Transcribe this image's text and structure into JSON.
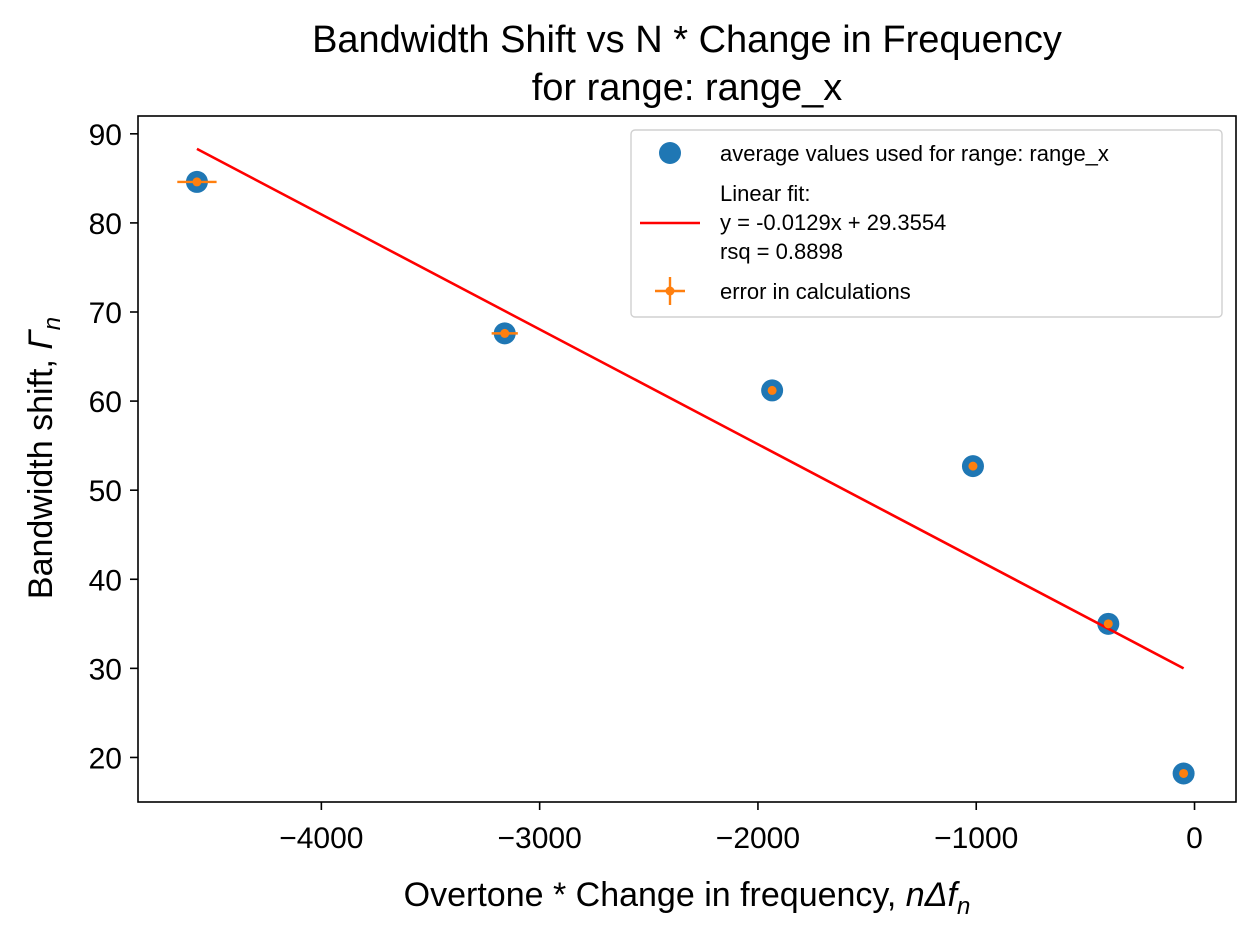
{
  "chart_data": {
    "type": "scatter",
    "title": "Bandwidth Shift vs N * Change in Frequency",
    "subtitle": "for range: range_x",
    "xlabel": "Overtone * Change in frequency, ",
    "xlabel_math": "nΔf",
    "xlabel_sub": "n",
    "ylabel": "Bandwidth shift, ",
    "ylabel_math": "Γ",
    "ylabel_sub": "n",
    "xlim": [
      -4840,
      190
    ],
    "ylim": [
      15,
      92
    ],
    "xticks": [
      -4000,
      -3000,
      -2000,
      -1000,
      0
    ],
    "xtick_labels": [
      "−4000",
      "−3000",
      "−2000",
      "−1000",
      "0"
    ],
    "yticks": [
      20,
      30,
      40,
      50,
      60,
      70,
      80,
      90
    ],
    "ytick_labels": [
      "20",
      "30",
      "40",
      "50",
      "60",
      "70",
      "80",
      "90"
    ],
    "grid": false,
    "legend_position": "top-right",
    "series": [
      {
        "name": "average values used for range: range_x",
        "kind": "scatter",
        "color": "#1f77b4",
        "points": [
          {
            "x": -4570,
            "y": 84.6
          },
          {
            "x": -3160,
            "y": 67.6
          },
          {
            "x": -1935,
            "y": 61.2
          },
          {
            "x": -1015,
            "y": 52.7
          },
          {
            "x": -395,
            "y": 35.0
          },
          {
            "x": -50,
            "y": 18.2
          }
        ]
      },
      {
        "name": "Linear fit:\ny = -0.0129x + 29.3554\nrsq = 0.8898",
        "legend_lines": [
          "Linear fit:",
          "y = -0.0129x + 29.3554",
          "rsq = 0.8898"
        ],
        "kind": "line",
        "color": "#ff0000",
        "slope": -0.0129,
        "intercept": 29.3554,
        "x_range": [
          -4570,
          -50
        ]
      },
      {
        "name": "error in calculations",
        "kind": "errorbar",
        "color": "#ff7f0e",
        "points": [
          {
            "x": -4570,
            "y": 84.6,
            "xerr": 90,
            "yerr": 0.3
          },
          {
            "x": -3160,
            "y": 67.6,
            "xerr": 60,
            "yerr": 0.3
          },
          {
            "x": -1935,
            "y": 61.2,
            "xerr": 15,
            "yerr": 0.2
          },
          {
            "x": -1015,
            "y": 52.7,
            "xerr": 10,
            "yerr": 0.2
          },
          {
            "x": -395,
            "y": 35.0,
            "xerr": 10,
            "yerr": 0.2
          },
          {
            "x": -50,
            "y": 18.2,
            "xerr": 5,
            "yerr": 0.2
          }
        ]
      }
    ]
  }
}
